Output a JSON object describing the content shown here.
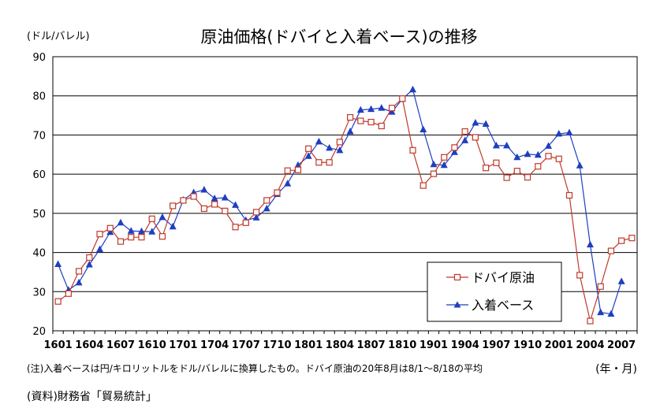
{
  "chart_data": {
    "type": "line",
    "title": "原油価格(ドバイと入着ベース)の推移",
    "ylabel": "(ドル/バレル)",
    "xlabel": "(年・月)",
    "ylim": [
      20,
      90
    ],
    "yticks": [
      "20",
      "30",
      "40",
      "50",
      "60",
      "70",
      "80",
      "90"
    ],
    "xticks": [
      "1601",
      "1604",
      "1607",
      "1610",
      "1701",
      "1704",
      "1707",
      "1710",
      "1801",
      "1804",
      "1807",
      "1810",
      "1901",
      "1904",
      "1907",
      "1910",
      "2001",
      "2004",
      "2007"
    ],
    "grid": true,
    "legend_position": "bottom-right",
    "x": [
      "1601",
      "1602",
      "1603",
      "1604",
      "1605",
      "1606",
      "1607",
      "1608",
      "1609",
      "1610",
      "1611",
      "1612",
      "1701",
      "1702",
      "1703",
      "1704",
      "1705",
      "1706",
      "1707",
      "1708",
      "1709",
      "1710",
      "1711",
      "1712",
      "1801",
      "1802",
      "1803",
      "1804",
      "1805",
      "1806",
      "1807",
      "1808",
      "1809",
      "1810",
      "1811",
      "1812",
      "1901",
      "1902",
      "1903",
      "1904",
      "1905",
      "1906",
      "1907",
      "1908",
      "1909",
      "1910",
      "1911",
      "1912",
      "2001",
      "2002",
      "2003",
      "2004",
      "2005",
      "2006",
      "2007",
      "2008"
    ],
    "series": [
      {
        "name": "ドバイ原油",
        "color": "#c0392b",
        "marker": "open-square",
        "values": [
          27.5,
          29.5,
          35.2,
          38.7,
          44.7,
          46.2,
          42.8,
          43.9,
          43.9,
          48.6,
          44.1,
          51.9,
          53.3,
          54.3,
          51.2,
          52.3,
          50.6,
          46.5,
          47.6,
          50.3,
          53.3,
          55.3,
          60.9,
          61.1,
          66.5,
          63.0,
          63.0,
          68.2,
          74.5,
          73.6,
          73.3,
          72.3,
          76.9,
          79.3,
          66.1,
          57.1,
          60.1,
          64.3,
          66.8,
          70.9,
          69.4,
          61.6,
          62.9,
          59.1,
          60.8,
          59.2,
          62.0,
          64.6,
          63.9,
          54.6,
          34.2,
          22.5,
          31.3,
          40.4,
          43.0,
          43.7
        ]
      },
      {
        "name": "入着ベース",
        "color": "#1f3fbf",
        "marker": "filled-triangle",
        "values": [
          37.0,
          30.4,
          32.3,
          36.9,
          40.8,
          45.2,
          47.6,
          45.5,
          45.4,
          45.3,
          49.0,
          46.6,
          53.4,
          55.3,
          56.0,
          53.8,
          54.0,
          52.1,
          48.2,
          48.9,
          51.2,
          54.9,
          57.6,
          62.3,
          64.6,
          68.3,
          66.7,
          66.1,
          70.9,
          76.4,
          76.6,
          76.9,
          75.9,
          79.2,
          81.6,
          71.4,
          62.5,
          62.3,
          65.6,
          68.6,
          73.1,
          72.8,
          67.3,
          67.3,
          64.3,
          65.1,
          64.9,
          67.2,
          70.3,
          70.6,
          62.2,
          42.0,
          24.7,
          24.3,
          32.6,
          null
        ]
      }
    ]
  },
  "notes": {
    "note": "(注)入着ベースは円/キロリットルをドル/バレルに換算したもの。ドバイ原油の20年8月は8/1～8/18の平均",
    "source": "(資料)財務省「貿易統計」"
  }
}
